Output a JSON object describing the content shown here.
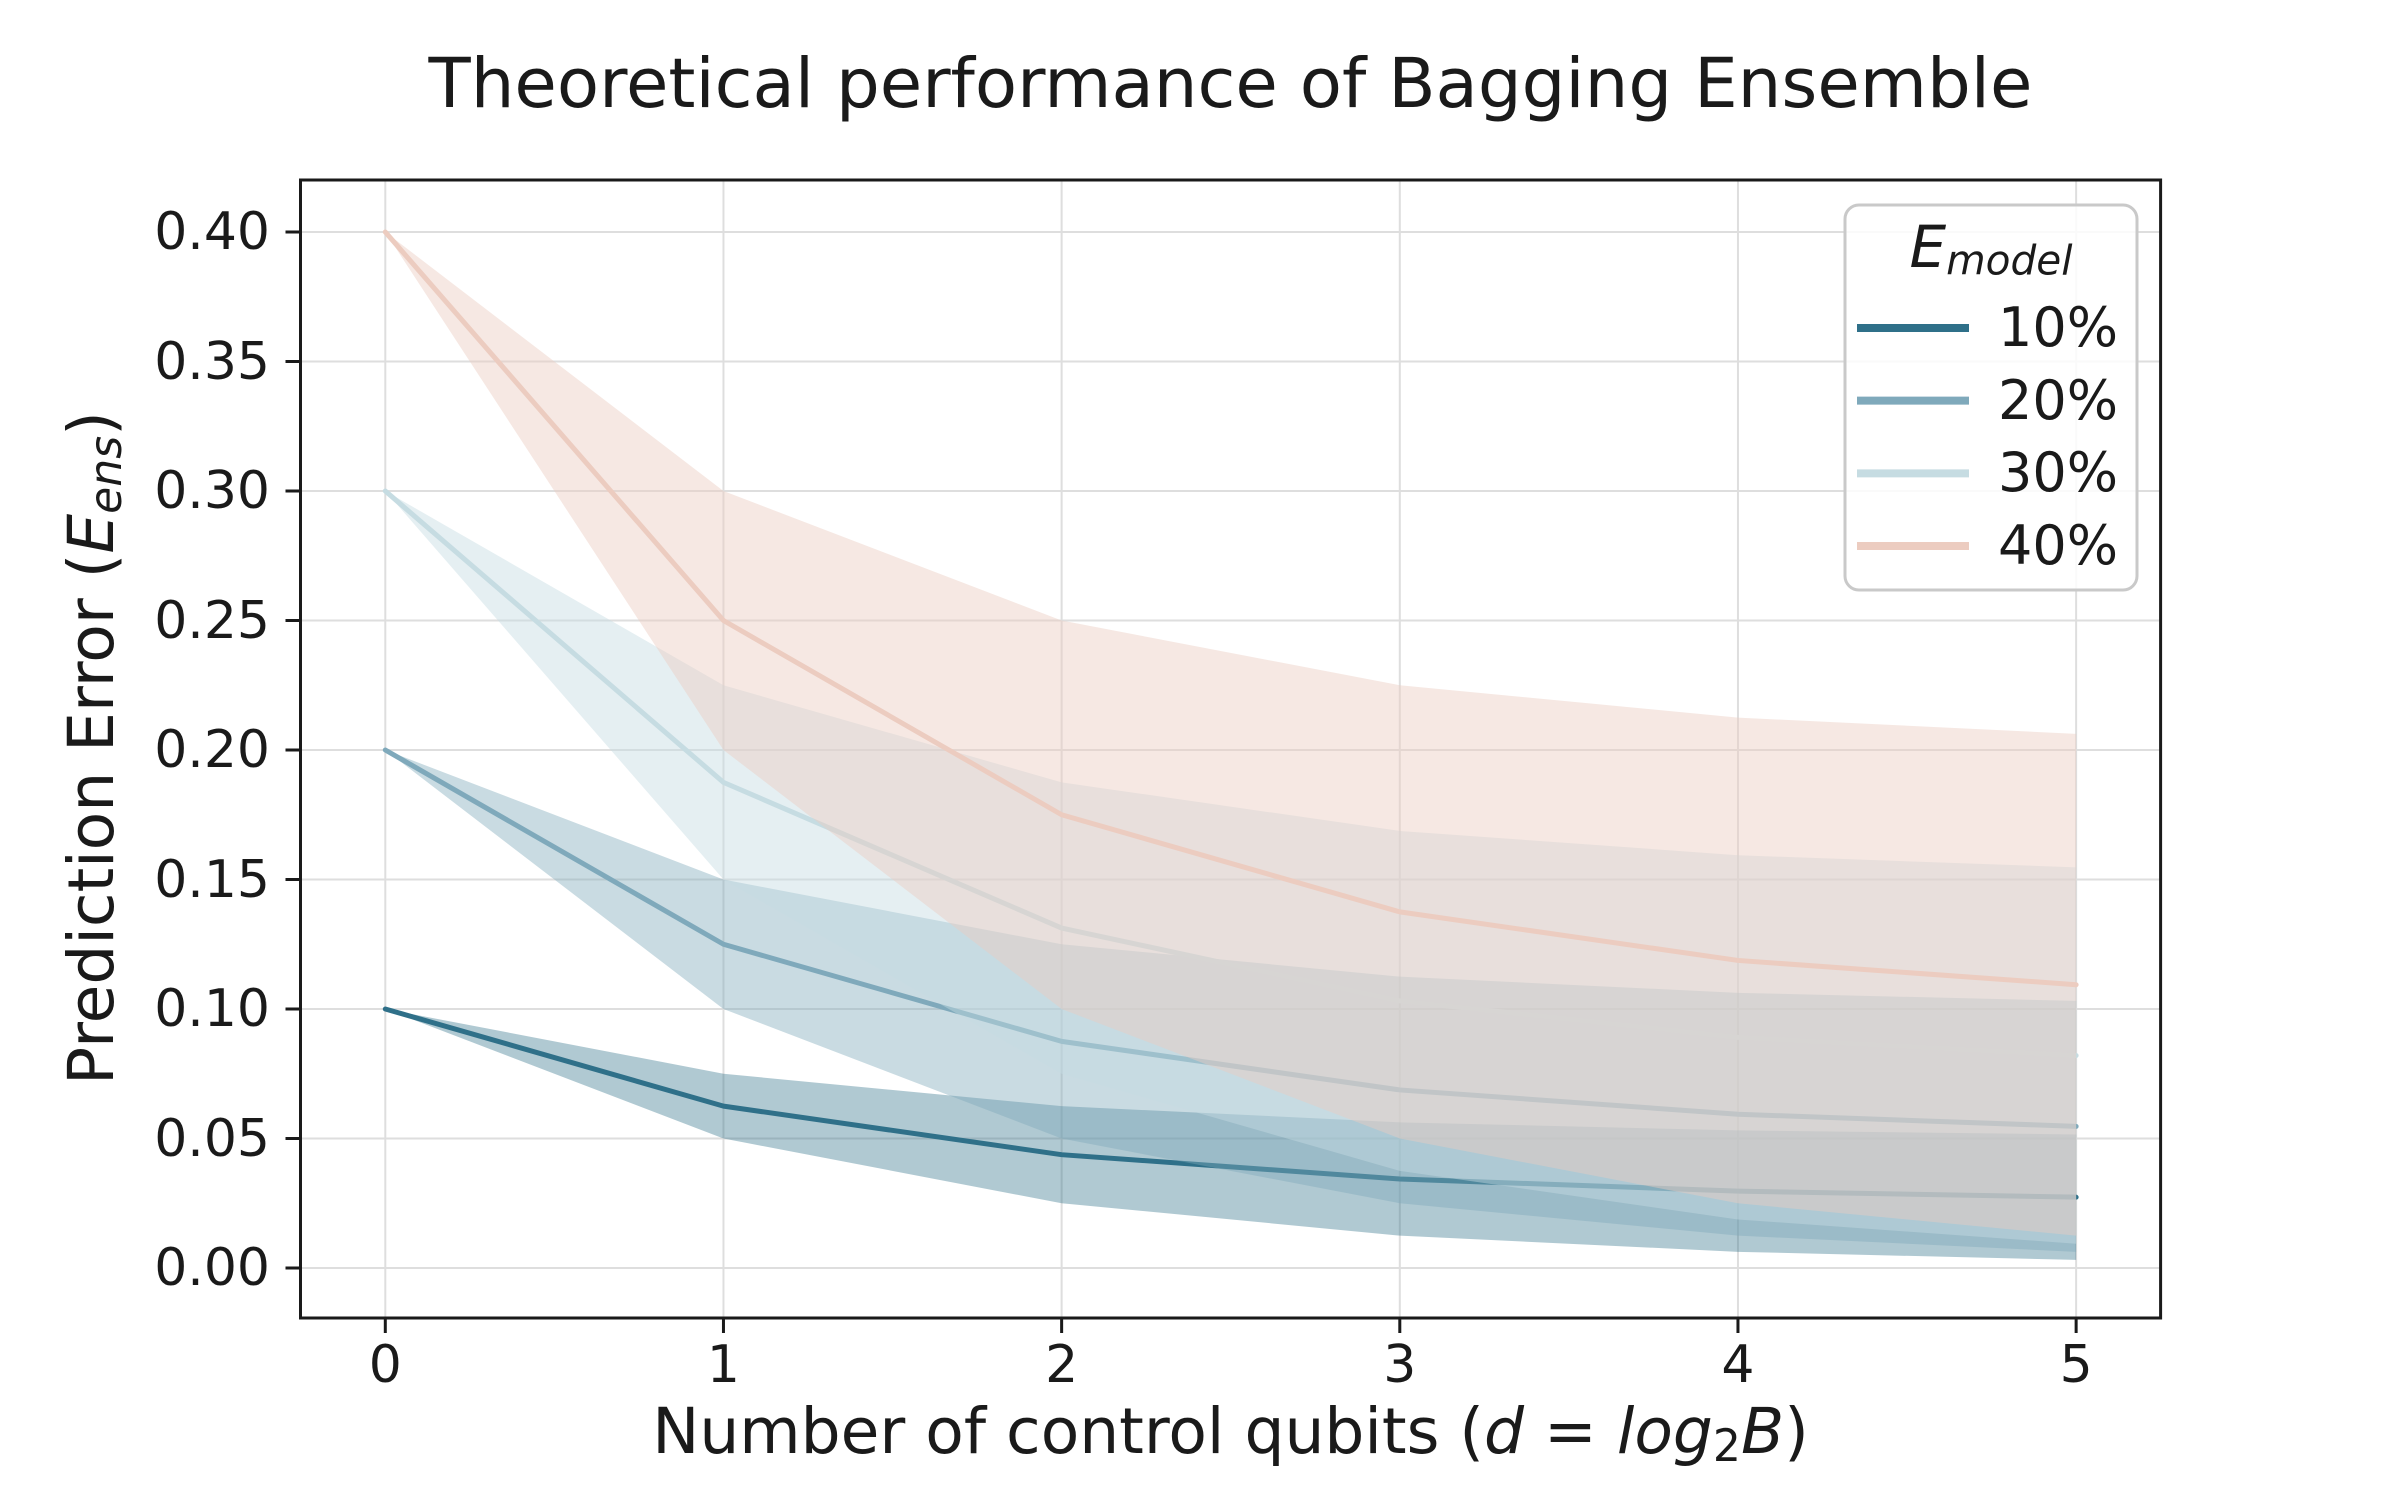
{
  "title": "Theoretical performance of Bagging Ensemble",
  "axes": {
    "x": {
      "label_parts": [
        {
          "t": "Number of control qubits ("
        },
        {
          "t": "d",
          "i": true
        },
        {
          "t": " = "
        },
        {
          "t": "log",
          "i": true
        },
        {
          "t": "2",
          "sub": true
        },
        {
          "t": "B",
          "i": true
        },
        {
          "t": ")"
        }
      ],
      "ticks": [
        {
          "v": 0,
          "label": "0"
        },
        {
          "v": 1,
          "label": "1"
        },
        {
          "v": 2,
          "label": "2"
        },
        {
          "v": 3,
          "label": "3"
        },
        {
          "v": 4,
          "label": "4"
        },
        {
          "v": 5,
          "label": "5"
        }
      ]
    },
    "y": {
      "label_parts": [
        {
          "t": "Prediction Error ("
        },
        {
          "t": "E",
          "i": true
        },
        {
          "t": "ens",
          "i": true,
          "sub": true
        },
        {
          "t": ")"
        }
      ],
      "ticks": [
        {
          "v": 0.0,
          "label": "0.00"
        },
        {
          "v": 0.05,
          "label": "0.05"
        },
        {
          "v": 0.1,
          "label": "0.10"
        },
        {
          "v": 0.15,
          "label": "0.15"
        },
        {
          "v": 0.2,
          "label": "0.20"
        },
        {
          "v": 0.25,
          "label": "0.25"
        },
        {
          "v": 0.3,
          "label": "0.30"
        },
        {
          "v": 0.35,
          "label": "0.35"
        },
        {
          "v": 0.4,
          "label": "0.40"
        }
      ]
    }
  },
  "legend": {
    "title_text": "E_model",
    "title_parts": [
      {
        "t": "E",
        "i": true
      },
      {
        "t": "model",
        "i": true,
        "sub": true
      }
    ],
    "position": "upper right"
  },
  "style": {
    "background": "#ffffff",
    "grid_color": "#dedede",
    "spine_color": "#1a1a1a",
    "text_color": "#1a1a1a",
    "legend_border": "#c9c9c9"
  },
  "chart_data": {
    "type": "line",
    "title": "Theoretical performance of Bagging Ensemble",
    "xlabel": "Number of control qubits (d = log2 B)",
    "ylabel": "Prediction Error (E_ens)",
    "x": [
      0,
      1,
      2,
      3,
      4,
      5
    ],
    "xlim": [
      -0.25,
      5.25
    ],
    "ylim": [
      -0.02,
      0.42
    ],
    "grid": true,
    "legend_title": "E_model",
    "legend_position": "upper right",
    "series": [
      {
        "name": "10%",
        "color": "#2f7089",
        "band_alpha": 0.38,
        "mean": [
          0.1,
          0.0625,
          0.04375,
          0.034375,
          0.0296875,
          0.02734375
        ],
        "band_upper": [
          0.1,
          0.075,
          0.0625,
          0.05625,
          0.053125,
          0.0515625
        ],
        "band_lower": [
          0.1,
          0.05,
          0.025,
          0.0125,
          0.00625,
          0.003125
        ]
      },
      {
        "name": "20%",
        "color": "#7fa9bb",
        "band_alpha": 0.42,
        "mean": [
          0.2,
          0.125,
          0.0875,
          0.06875,
          0.059375,
          0.0546875
        ],
        "band_upper": [
          0.2,
          0.15,
          0.125,
          0.1125,
          0.10625,
          0.103125
        ],
        "band_lower": [
          0.2,
          0.1,
          0.05,
          0.025,
          0.0125,
          0.00625
        ]
      },
      {
        "name": "30%",
        "color": "#c6dce2",
        "band_alpha": 0.45,
        "mean": [
          0.3,
          0.1875,
          0.13125,
          0.103125,
          0.0890625,
          0.08203125
        ],
        "band_upper": [
          0.3,
          0.225,
          0.1875,
          0.16875,
          0.159375,
          0.1546875
        ],
        "band_lower": [
          0.3,
          0.15,
          0.075,
          0.0375,
          0.01875,
          0.009375
        ]
      },
      {
        "name": "40%",
        "color": "#ecccc0",
        "band_alpha": 0.45,
        "mean": [
          0.4,
          0.25,
          0.175,
          0.1375,
          0.11875,
          0.109375
        ],
        "band_upper": [
          0.4,
          0.3,
          0.25,
          0.225,
          0.2125,
          0.20625
        ],
        "band_lower": [
          0.4,
          0.2,
          0.1,
          0.05,
          0.025,
          0.0125
        ]
      }
    ]
  }
}
